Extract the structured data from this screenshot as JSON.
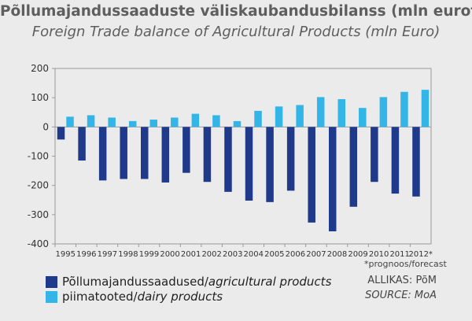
{
  "title": "Põllumajandussaaduste väliskaubandusbilanss (mln eurot)",
  "subtitle": "Foreign Trade balance of Agricultural Products (mln Euro)",
  "forecast_note": "*prognoos/forecast",
  "source_et": "ALLIKAS: PõM",
  "source_en": "SOURCE: MoA",
  "legend": [
    {
      "label_plain": "Põllumajandussaadused/",
      "label_italic": "agricultural products",
      "color": "#1f3a8a"
    },
    {
      "label_plain": "piimatooted/",
      "label_italic": "dairy products",
      "color": "#33b5e8"
    }
  ],
  "chart_data": {
    "type": "bar",
    "categories": [
      "1995",
      "1996",
      "1997",
      "1998",
      "1999",
      "2000",
      "2001",
      "2002",
      "2003",
      "2004",
      "2005",
      "2006",
      "2007",
      "2008",
      "2009",
      "2010",
      "2011",
      "2012*"
    ],
    "series": [
      {
        "name": "Põllumajandussaadused/agricultural products",
        "color": "#1f3a8a",
        "values": [
          -43,
          -115,
          -183,
          -178,
          -178,
          -190,
          -157,
          -188,
          -222,
          -252,
          -257,
          -218,
          -327,
          -357,
          -273,
          -188,
          -228,
          -238
        ]
      },
      {
        "name": "piimatooted/dairy products",
        "color": "#33b5e8",
        "values": [
          35,
          40,
          32,
          20,
          25,
          32,
          45,
          40,
          20,
          55,
          70,
          75,
          102,
          95,
          65,
          102,
          120,
          127
        ]
      }
    ],
    "yticks": [
      200,
      100,
      0,
      -100,
      -200,
      -300,
      -400
    ],
    "ylim": [
      -400,
      200
    ],
    "grid": false
  }
}
